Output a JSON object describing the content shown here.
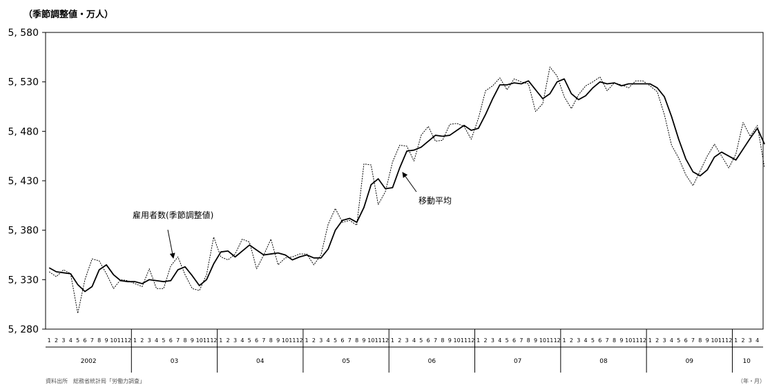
{
  "chart_data": {
    "type": "line",
    "y_unit_label": "（季節調整値・万人）",
    "x_unit_label": "（年・月）",
    "source_note": "資料出所　総務省統計局「労働力調査」",
    "ylim": [
      5280,
      5580
    ],
    "yticks": [
      5280,
      5330,
      5380,
      5430,
      5480,
      5530,
      5580
    ],
    "ytick_labels": [
      "5, 280",
      "5, 330",
      "5, 380",
      "5, 430",
      "5, 480",
      "5, 530",
      "5, 580"
    ],
    "months_per_year": 12,
    "year_groups": [
      {
        "label": "2002",
        "months": 12
      },
      {
        "label": "03",
        "months": 12
      },
      {
        "label": "04",
        "months": 12
      },
      {
        "label": "05",
        "months": 12
      },
      {
        "label": "06",
        "months": 12
      },
      {
        "label": "07",
        "months": 12
      },
      {
        "label": "08",
        "months": 12
      },
      {
        "label": "09",
        "months": 12
      },
      {
        "label": "10",
        "months": 4
      }
    ],
    "series": [
      {
        "name": "雇用者数(季節調整値)",
        "style": "dotted",
        "color": "#000000",
        "values": [
          5338,
          5333,
          5340,
          5336,
          5296,
          5330,
          5351,
          5349,
          5336,
          5321,
          5330,
          5329,
          5326,
          5323,
          5341,
          5321,
          5321,
          5344,
          5353,
          5335,
          5321,
          5319,
          5335,
          5373,
          5353,
          5350,
          5356,
          5371,
          5368,
          5341,
          5355,
          5371,
          5345,
          5352,
          5353,
          5356,
          5356,
          5345,
          5355,
          5386,
          5402,
          5388,
          5390,
          5385,
          5447,
          5446,
          5406,
          5419,
          5449,
          5466,
          5465,
          5450,
          5476,
          5485,
          5470,
          5471,
          5487,
          5488,
          5485,
          5472,
          5493,
          5521,
          5526,
          5534,
          5522,
          5533,
          5530,
          5528,
          5500,
          5508,
          5545,
          5536,
          5515,
          5503,
          5517,
          5526,
          5530,
          5535,
          5521,
          5529,
          5527,
          5524,
          5531,
          5531,
          5526,
          5520,
          5497,
          5466,
          5453,
          5436,
          5425,
          5440,
          5455,
          5467,
          5455,
          5443,
          5457,
          5489,
          5475,
          5486,
          5443
        ]
      },
      {
        "name": "移動平均",
        "style": "solid",
        "color": "#000000",
        "values": [
          5342,
          5338,
          5337,
          5336,
          5325,
          5318,
          5323,
          5340,
          5345,
          5335,
          5329,
          5328,
          5328,
          5326,
          5330,
          5329,
          5328,
          5329,
          5340,
          5343,
          5334,
          5324,
          5330,
          5346,
          5358,
          5359,
          5353,
          5359,
          5365,
          5360,
          5355,
          5356,
          5357,
          5355,
          5350,
          5353,
          5355,
          5352,
          5352,
          5361,
          5380,
          5390,
          5392,
          5388,
          5403,
          5426,
          5432,
          5422,
          5423,
          5443,
          5460,
          5461,
          5464,
          5470,
          5476,
          5475,
          5476,
          5481,
          5486,
          5481,
          5483,
          5497,
          5513,
          5527,
          5527,
          5529,
          5528,
          5531,
          5522,
          5513,
          5518,
          5530,
          5533,
          5518,
          5512,
          5516,
          5524,
          5530,
          5528,
          5529,
          5526,
          5528,
          5528,
          5528,
          5528,
          5524,
          5515,
          5495,
          5472,
          5452,
          5439,
          5435,
          5441,
          5454,
          5459,
          5455,
          5451,
          5462,
          5473,
          5483,
          5467
        ]
      }
    ],
    "annotations": [
      {
        "text": "雇用者数(季節調整値)",
        "points_to_series": 0
      },
      {
        "text": "移動平均",
        "points_to_series": 1
      }
    ]
  }
}
